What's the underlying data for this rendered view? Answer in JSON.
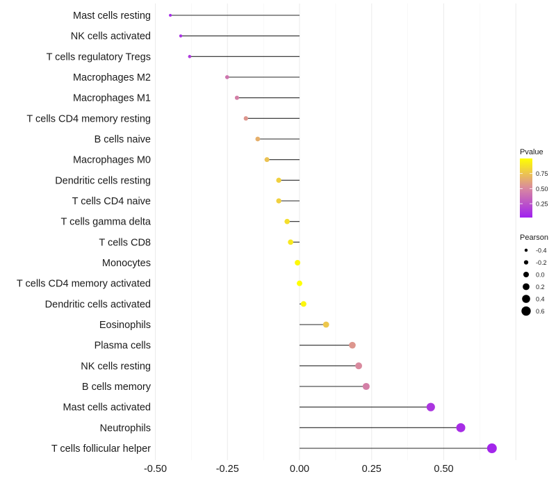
{
  "chart_data": {
    "type": "lollipop",
    "title": "",
    "xlabel": "",
    "ylabel": "",
    "xlim": [
      -0.52,
      0.72
    ],
    "x_ticks": [
      -0.5,
      -0.25,
      0.0,
      0.25,
      0.5
    ],
    "x_tick_labels": [
      "-0.50",
      "-0.25",
      "0.00",
      "0.25",
      "0.50"
    ],
    "grid": true,
    "categories": [
      "Mast cells resting",
      "NK cells activated",
      "T cells regulatory  Tregs ",
      "Macrophages M2",
      "Macrophages M1",
      "T cells CD4 memory resting",
      "B cells naive",
      "Macrophages M0",
      "Dendritic cells resting",
      "T cells CD4 naive",
      "T cells gamma delta",
      "T cells CD8",
      "Monocytes",
      "T cells CD4 memory activated",
      "Dendritic cells activated",
      "Eosinophils",
      "Plasma cells",
      "NK cells resting",
      "B cells memory",
      "Mast cells activated",
      "Neutrophils",
      "T cells follicular helper"
    ],
    "values": [
      -0.448,
      -0.412,
      -0.381,
      -0.251,
      -0.217,
      -0.186,
      -0.145,
      -0.113,
      -0.072,
      -0.072,
      -0.043,
      -0.031,
      -0.007,
      0.0,
      0.014,
      0.092,
      0.183,
      0.205,
      0.231,
      0.455,
      0.559,
      0.667
    ],
    "pvalues": [
      0.05,
      0.08,
      0.12,
      0.4,
      0.45,
      0.55,
      0.66,
      0.74,
      0.8,
      0.8,
      0.86,
      0.9,
      0.97,
      1.0,
      0.96,
      0.76,
      0.55,
      0.5,
      0.45,
      0.1,
      0.06,
      0.03
    ],
    "color_legend": {
      "title": "Pvalue",
      "ticks": [
        0.25,
        0.5,
        0.75
      ],
      "tick_labels": [
        "0.25",
        "0.50",
        "0.75"
      ],
      "low": "#A020F0",
      "mid": "#D98A9E",
      "high": "#FFFF00",
      "range": [
        0.0,
        1.0
      ]
    },
    "size_legend": {
      "title": "Pearson",
      "values": [
        -0.4,
        -0.2,
        0.0,
        0.2,
        0.4,
        0.6
      ],
      "labels": [
        "-0.4",
        "-0.2",
        "0.0",
        "0.2",
        "0.4",
        "0.6"
      ]
    },
    "legend_placement": "right"
  }
}
